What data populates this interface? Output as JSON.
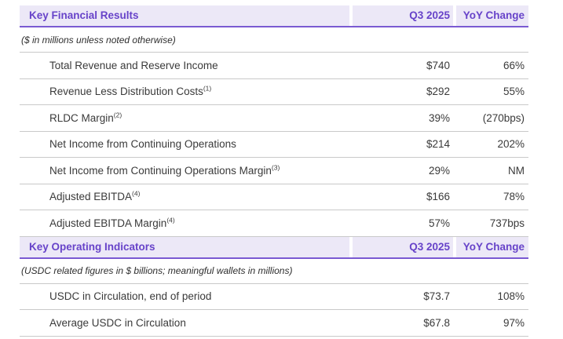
{
  "colors": {
    "accent_purple_text": "#6743c9",
    "header_underline_purple": "#7a5ad2",
    "header_background": "#ece8f7",
    "row_border_gray": "#c9c9c9",
    "body_text": "#3a3a3a",
    "page_background": "#ffffff"
  },
  "sections": [
    {
      "header": {
        "title": "Key Financial Results",
        "period_col": "Q3 2025",
        "change_col": "YoY Change"
      },
      "note": "($ in millions unless noted otherwise)",
      "rows": [
        {
          "label": "Total Revenue and Reserve Income",
          "sup": "",
          "value": "$740",
          "change": "66%"
        },
        {
          "label": "Revenue Less Distribution Costs",
          "sup": "(1)",
          "value": "$292",
          "change": "55%"
        },
        {
          "label": "RLDC Margin",
          "sup": "(2)",
          "value": "39%",
          "change": "(270bps)"
        },
        {
          "label": "Net Income from Continuing Operations",
          "sup": "",
          "value": "$214",
          "change": "202%"
        },
        {
          "label": "Net Income from Continuing Operations Margin",
          "sup": "(3)",
          "value": "29%",
          "change": "NM"
        },
        {
          "label": "Adjusted EBITDA",
          "sup": "(4)",
          "value": "$166",
          "change": "78%"
        },
        {
          "label": "Adjusted EBITDA Margin",
          "sup": "(4)",
          "value": "57%",
          "change": "737bps"
        }
      ]
    },
    {
      "header": {
        "title": "Key Operating Indicators",
        "period_col": "Q3 2025",
        "change_col": "YoY Change"
      },
      "note": "(USDC related figures in $ billions; meaningful wallets in millions)",
      "rows": [
        {
          "label": "USDC in Circulation, end of period",
          "sup": "",
          "value": "$73.7",
          "change": "108%"
        },
        {
          "label": "Average USDC in Circulation",
          "sup": "",
          "value": "$67.8",
          "change": "97%"
        }
      ]
    }
  ]
}
